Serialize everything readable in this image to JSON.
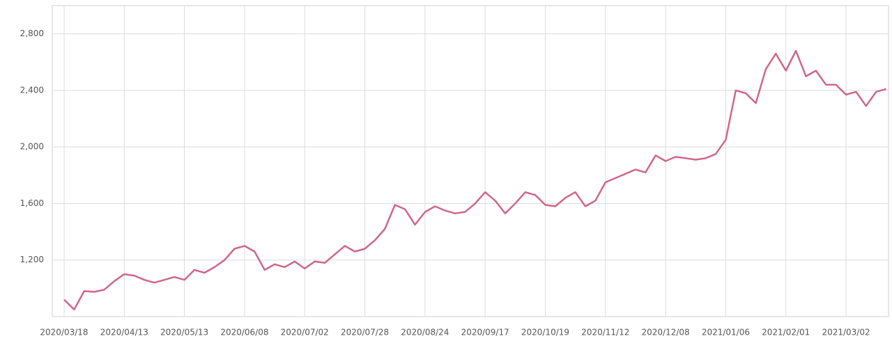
{
  "chart_data": {
    "type": "line",
    "categories": [
      "2020/03/18",
      null,
      null,
      null,
      null,
      null,
      "2020/04/13",
      null,
      null,
      null,
      null,
      null,
      "2020/05/13",
      null,
      null,
      null,
      null,
      null,
      "2020/06/08",
      null,
      null,
      null,
      null,
      null,
      "2020/07/02",
      null,
      null,
      null,
      null,
      null,
      "2020/07/28",
      null,
      null,
      null,
      null,
      null,
      "2020/08/24",
      null,
      null,
      null,
      null,
      null,
      "2020/09/17",
      null,
      null,
      null,
      null,
      null,
      "2020/10/19",
      null,
      null,
      null,
      null,
      null,
      "2020/11/12",
      null,
      null,
      null,
      null,
      null,
      "2020/12/08",
      null,
      null,
      null,
      null,
      null,
      "2021/01/06",
      null,
      null,
      null,
      null,
      null,
      "2021/02/01",
      null,
      null,
      null,
      null,
      null,
      "2021/03/02",
      null,
      null,
      null,
      null
    ],
    "values": [
      920,
      850,
      980,
      975,
      990,
      1050,
      1100,
      1090,
      1060,
      1040,
      1060,
      1080,
      1060,
      1130,
      1110,
      1150,
      1200,
      1280,
      1300,
      1260,
      1130,
      1170,
      1150,
      1190,
      1140,
      1190,
      1180,
      1240,
      1300,
      1260,
      1280,
      1340,
      1420,
      1590,
      1560,
      1450,
      1540,
      1580,
      1550,
      1530,
      1540,
      1600,
      1680,
      1620,
      1530,
      1600,
      1680,
      1660,
      1590,
      1580,
      1640,
      1680,
      1580,
      1620,
      1750,
      1780,
      1810,
      1840,
      1820,
      1940,
      1900,
      1930,
      1920,
      1910,
      1920,
      1950,
      2050,
      2400,
      2380,
      2310,
      2550,
      2660,
      2540,
      2680,
      2500,
      2540,
      2440,
      2440,
      2370,
      2390,
      2290,
      2390,
      2410
    ],
    "color": "#d0668b",
    "ylim": [
      800,
      3000
    ],
    "yticks": [
      {
        "value": 1200,
        "label": "1,200"
      },
      {
        "value": 1600,
        "label": "1,600"
      },
      {
        "value": 2000,
        "label": "2,000"
      },
      {
        "value": 2400,
        "label": "2,400"
      },
      {
        "value": 2800,
        "label": "2,800"
      }
    ],
    "grid": true
  }
}
